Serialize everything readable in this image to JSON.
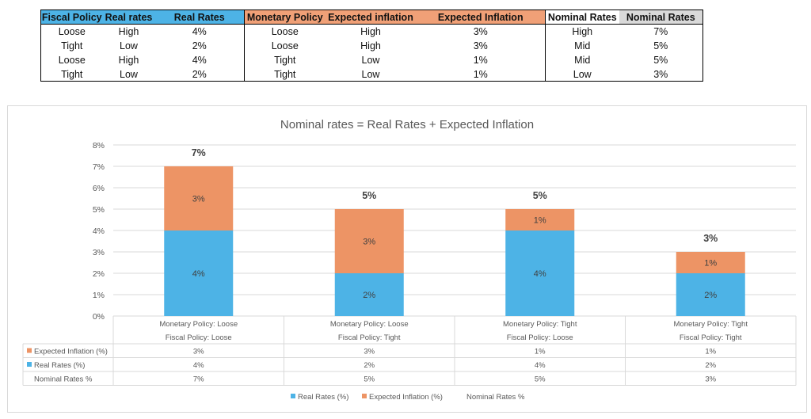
{
  "sheet": {
    "headers": [
      "Fiscal Policy",
      "Real rates",
      "Real Rates",
      "Monetary Policy",
      "Expected inflation",
      "Expected Inflation",
      "Nominal Rates",
      "Nominal Rates"
    ],
    "rows": [
      [
        "Loose",
        "High",
        "4%",
        "Loose",
        "High",
        "3%",
        "High",
        "7%"
      ],
      [
        "Tight",
        "Low",
        "2%",
        "Loose",
        "High",
        "3%",
        "Mid",
        "5%"
      ],
      [
        "Loose",
        "High",
        "4%",
        "Tight",
        "Low",
        "1%",
        "Mid",
        "5%"
      ],
      [
        "Tight",
        "Low",
        "2%",
        "Tight",
        "Low",
        "1%",
        "Low",
        "3%"
      ]
    ]
  },
  "colors": {
    "real_rates": "#4db3e6",
    "expected_inflation": "#ed9465",
    "header_gray": "#d9d9d9"
  },
  "chart_data": {
    "type": "bar",
    "stacked": true,
    "title": "Nominal rates = Real Rates + Expected Inflation",
    "categories": [
      [
        "Monetary Policy: Loose",
        "Fiscal Policy: Loose"
      ],
      [
        "Monetary Policy: Loose",
        "Fiscal Policy: Tight"
      ],
      [
        "Monetary Policy: Tight",
        "Fiscal Policy: Loose"
      ],
      [
        "Monetary Policy: Tight",
        "Fiscal Policy: Tight"
      ]
    ],
    "series": [
      {
        "name": "Real Rates (%)",
        "values": [
          4,
          2,
          4,
          2
        ],
        "labels": [
          "4%",
          "2%",
          "4%",
          "2%"
        ]
      },
      {
        "name": "Expected Inflation (%)",
        "values": [
          3,
          3,
          1,
          1
        ],
        "labels": [
          "3%",
          "3%",
          "1%",
          "1%"
        ]
      }
    ],
    "totals": {
      "name": "Nominal Rates %",
      "values": [
        7,
        5,
        5,
        3
      ],
      "labels": [
        "7%",
        "5%",
        "5%",
        "3%"
      ]
    },
    "ylim": [
      0,
      8
    ],
    "yticks": [
      "0%",
      "1%",
      "2%",
      "3%",
      "4%",
      "5%",
      "6%",
      "7%",
      "8%"
    ],
    "grid": true,
    "legend": "bottom",
    "data_table": {
      "rows": [
        {
          "label": "Expected Inflation (%)",
          "values": [
            "3%",
            "3%",
            "1%",
            "1%"
          ]
        },
        {
          "label": "Real Rates (%)",
          "values": [
            "4%",
            "2%",
            "4%",
            "2%"
          ]
        },
        {
          "label": "Nominal Rates %",
          "values": [
            "7%",
            "5%",
            "5%",
            "3%"
          ]
        }
      ]
    }
  }
}
